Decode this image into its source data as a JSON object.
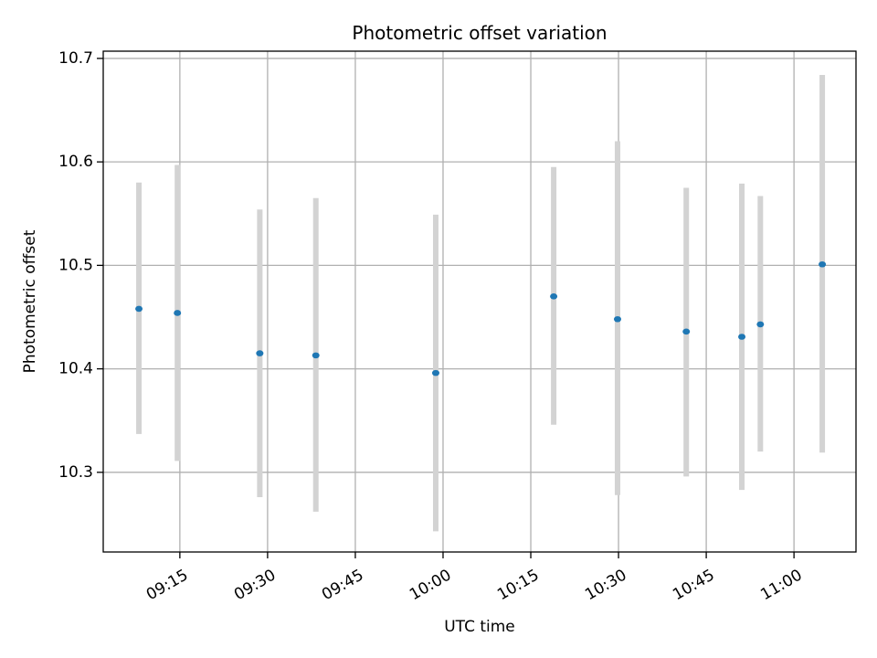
{
  "chart_data": {
    "type": "scatter",
    "title": "Photometric offset variation",
    "xlabel": "UTC time",
    "ylabel": "Photometric offset",
    "grid": true,
    "x_ticks": [
      "09:15",
      "09:30",
      "09:45",
      "10:00",
      "10:15",
      "10:30",
      "10:45",
      "11:00"
    ],
    "x_tick_minutes": [
      555,
      570,
      585,
      600,
      615,
      630,
      645,
      660
    ],
    "xlim": [
      541.9,
      670.6
    ],
    "y_ticks": [
      10.3,
      10.4,
      10.5,
      10.6,
      10.7
    ],
    "y_tick_labels": [
      "10.3",
      "10.4",
      "10.5",
      "10.6",
      "10.7"
    ],
    "ylim": [
      10.223,
      10.707
    ],
    "point_color": "#1f77b4",
    "errorbar_color": "#d3d3d3",
    "points": [
      {
        "time": "09:08:00",
        "y": 10.458,
        "ymin": 10.337,
        "ymax": 10.58
      },
      {
        "time": "09:14:35",
        "y": 10.454,
        "ymin": 10.311,
        "ymax": 10.597
      },
      {
        "time": "09:28:40",
        "y": 10.415,
        "ymin": 10.276,
        "ymax": 10.554
      },
      {
        "time": "09:38:15",
        "y": 10.413,
        "ymin": 10.262,
        "ymax": 10.565
      },
      {
        "time": "09:58:45",
        "y": 10.396,
        "ymin": 10.243,
        "ymax": 10.549
      },
      {
        "time": "10:18:55",
        "y": 10.47,
        "ymin": 10.346,
        "ymax": 10.595
      },
      {
        "time": "10:29:50",
        "y": 10.448,
        "ymin": 10.278,
        "ymax": 10.62
      },
      {
        "time": "10:41:35",
        "y": 10.436,
        "ymin": 10.296,
        "ymax": 10.575
      },
      {
        "time": "10:51:05",
        "y": 10.431,
        "ymin": 10.283,
        "ymax": 10.579
      },
      {
        "time": "10:54:15",
        "y": 10.443,
        "ymin": 10.32,
        "ymax": 10.567
      },
      {
        "time": "11:04:50",
        "y": 10.501,
        "ymin": 10.319,
        "ymax": 10.684
      }
    ]
  }
}
